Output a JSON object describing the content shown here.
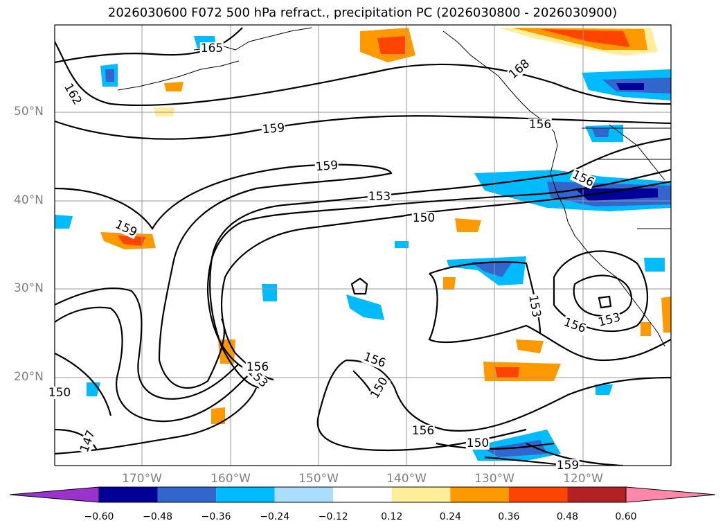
{
  "title": "2026030600 F072 500 hPa refract., precipitation PC (2026030800 - 2026030900)",
  "map": {
    "lat_labels": [
      "50°N",
      "40°N",
      "30°N",
      "20°N"
    ],
    "lon_labels": [
      "170°W",
      "160°W",
      "150°W",
      "140°W",
      "130°W",
      "120°W"
    ],
    "contour_labels": [
      "165",
      "162",
      "168",
      "159",
      "159",
      "159",
      "153",
      "150",
      "156",
      "156",
      "150",
      "153",
      "156",
      "153",
      "156",
      "150",
      "147",
      "153",
      "156",
      "159",
      "150",
      "156"
    ],
    "contour_color": "#000000",
    "grid": true
  },
  "colorbar": {
    "ticks": [
      "−0.60",
      "−0.48",
      "−0.36",
      "−0.24",
      "−0.12",
      "0.12",
      "0.24",
      "0.36",
      "0.48",
      "0.60"
    ],
    "colors": [
      "#9933cc",
      "#000099",
      "#3366cc",
      "#00bbff",
      "#aaddff",
      "#ffffff",
      "#ffee99",
      "#ff9900",
      "#ff4400",
      "#b22222",
      "#ff88aa"
    ]
  }
}
